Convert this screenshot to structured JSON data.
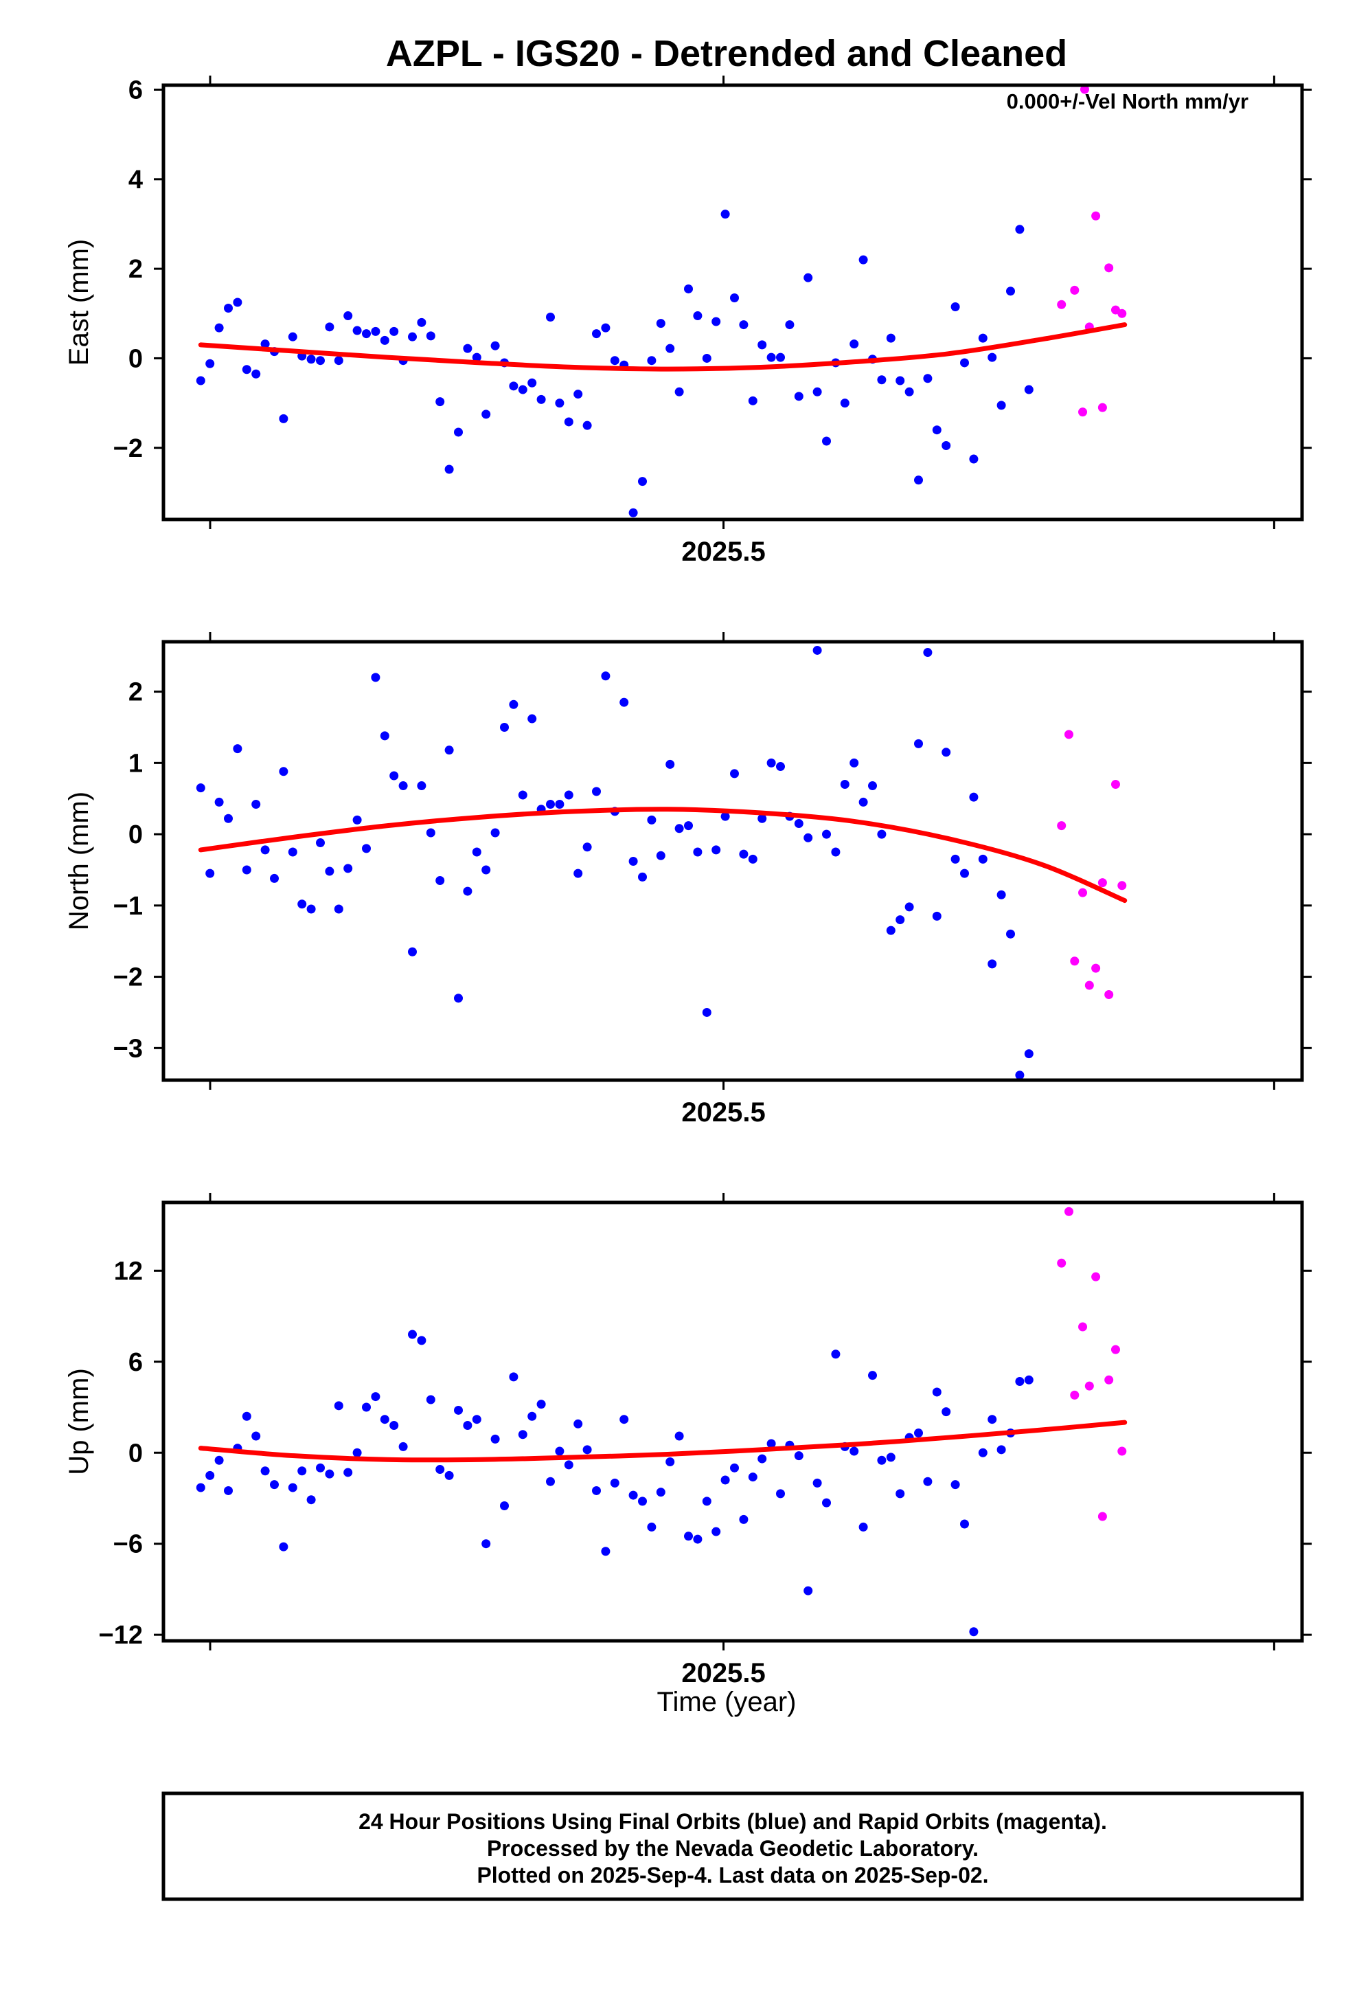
{
  "title": "AZPL - IGS20 - Detrended and Cleaned",
  "annotation": "0.000+/-Vel North mm/yr",
  "x_axis_label": "Time (year)",
  "footer": {
    "line1": "24 Hour Positions Using Final Orbits (blue) and Rapid Orbits (magenta).",
    "line2": "Processed by the Nevada Geodetic Laboratory.",
    "line3": "Plotted on 2025-Sep-4. Last data on 2025-Sep-02."
  },
  "colors": {
    "final": "#0000ff",
    "rapid": "#ff00ff",
    "fit": "#ff0000",
    "frame": "#000000"
  },
  "chart_data": [
    {
      "type": "scatter",
      "ylabel": "East (mm)",
      "xlim": [
        2025.3333,
        2025.6722
      ],
      "ylim": [
        -3.6,
        6.1
      ],
      "yticks": [
        -2,
        0,
        2,
        4,
        6
      ],
      "xticks": [
        2025.5
      ],
      "x_start": 2025.3444,
      "x_step": 0.002739,
      "final": [
        -0.5,
        -0.12,
        0.68,
        1.12,
        1.25,
        -0.25,
        -0.35,
        0.32,
        0.15,
        -1.35,
        0.48,
        0.05,
        -0.02,
        -0.05,
        0.7,
        -0.05,
        0.95,
        0.62,
        0.55,
        0.6,
        0.4,
        0.6,
        -0.05,
        0.48,
        0.8,
        0.5,
        -0.97,
        -2.48,
        -1.65,
        0.22,
        0.02,
        -1.25,
        0.28,
        -0.1,
        -0.62,
        -0.7,
        -0.55,
        -0.92,
        0.92,
        -1.0,
        -1.42,
        -0.8,
        -1.5,
        0.55,
        0.68,
        -0.05,
        -0.15,
        -3.45,
        -2.75,
        -0.05,
        0.78,
        0.22,
        -0.75,
        1.55,
        0.95,
        0.0,
        0.82,
        3.22,
        1.35,
        0.75,
        -0.95,
        0.3,
        0.02,
        0.02,
        0.75,
        -0.85,
        1.8,
        -0.75,
        -1.85,
        -0.1,
        -1.0,
        0.32,
        2.2,
        -0.02,
        -0.48,
        0.45,
        -0.5,
        -0.75,
        -2.72,
        -0.45,
        -1.6,
        -1.95,
        1.15,
        -0.1,
        -2.25,
        0.45,
        0.02,
        -1.05,
        1.5,
        2.88,
        -0.7
      ],
      "rapid": [
        1.2,
        1.52,
        -1.2,
        0.7,
        3.18,
        -1.1,
        2.02,
        1.08,
        1.0
      ],
      "rapid_x": [
        2025.6006,
        2025.6045,
        2025.6069,
        2025.6089,
        2025.6108,
        2025.6128,
        2025.6147,
        2025.6167,
        2025.6186
      ],
      "rapid_offscale_x": [
        2025.6075
      ],
      "fit_x": [
        2025.3444,
        2025.3722,
        2025.4,
        2025.4278,
        2025.4556,
        2025.4833,
        2025.5111,
        2025.5389,
        2025.5667,
        2025.5944,
        2025.6194
      ],
      "fit_y": [
        0.3,
        0.16,
        0.02,
        -0.1,
        -0.2,
        -0.24,
        -0.2,
        -0.08,
        0.1,
        0.42,
        0.75
      ]
    },
    {
      "type": "scatter",
      "ylabel": "North (mm)",
      "xlim": [
        2025.3333,
        2025.6722
      ],
      "ylim": [
        -3.45,
        2.7
      ],
      "yticks": [
        -3,
        -2,
        -1,
        0,
        1,
        2
      ],
      "xticks": [
        2025.5
      ],
      "x_start": 2025.3444,
      "x_step": 0.002739,
      "final": [
        0.65,
        -0.55,
        0.45,
        0.22,
        1.2,
        -0.5,
        0.42,
        -0.22,
        -0.62,
        0.88,
        -0.25,
        -0.98,
        -1.05,
        -0.12,
        -0.52,
        -1.05,
        -0.48,
        0.2,
        -0.2,
        2.2,
        1.38,
        0.82,
        0.68,
        -1.65,
        0.68,
        0.02,
        -0.65,
        1.18,
        -2.3,
        -0.8,
        -0.25,
        -0.5,
        0.02,
        1.5,
        1.82,
        0.55,
        1.62,
        0.35,
        0.42,
        0.42,
        0.55,
        -0.55,
        -0.18,
        0.6,
        2.22,
        0.32,
        1.85,
        -0.38,
        -0.6,
        0.2,
        -0.3,
        0.98,
        0.08,
        0.12,
        -0.25,
        -2.5,
        -0.22,
        0.25,
        0.85,
        -0.28,
        -0.35,
        0.22,
        1.0,
        0.95,
        0.25,
        0.15,
        -0.05,
        2.58,
        0.0,
        -0.25,
        0.7,
        1.0,
        0.45,
        0.68,
        0.0,
        -1.35,
        -1.2,
        -1.02,
        1.27,
        2.55,
        -1.15,
        1.15,
        -0.35,
        -0.55,
        0.52,
        -0.35,
        -1.82,
        -0.85,
        -1.4,
        -3.38,
        -3.08
      ],
      "rapid": [
        0.12,
        1.4,
        -1.78,
        -0.82,
        -2.12,
        -1.88,
        -0.68,
        -2.25,
        0.7,
        -0.72
      ],
      "rapid_x": [
        2025.6006,
        2025.6028,
        2025.6045,
        2025.6069,
        2025.6089,
        2025.6108,
        2025.6128,
        2025.6147,
        2025.6167,
        2025.6186
      ],
      "fit_x": [
        2025.3444,
        2025.3722,
        2025.4,
        2025.4278,
        2025.4556,
        2025.4833,
        2025.5111,
        2025.5389,
        2025.5667,
        2025.5944,
        2025.6194
      ],
      "fit_y": [
        -0.22,
        -0.04,
        0.12,
        0.24,
        0.32,
        0.35,
        0.3,
        0.18,
        -0.06,
        -0.42,
        -0.93
      ]
    },
    {
      "type": "scatter",
      "ylabel": "Up (mm)",
      "xlim": [
        2025.3333,
        2025.6722
      ],
      "ylim": [
        -12.4,
        16.5
      ],
      "yticks": [
        -12,
        -6,
        0,
        6,
        12
      ],
      "xticks": [
        2025.5
      ],
      "x_start": 2025.3444,
      "x_step": 0.002739,
      "final": [
        -2.3,
        -1.5,
        -0.5,
        -2.5,
        0.3,
        2.4,
        1.1,
        -1.2,
        -2.1,
        -6.2,
        -2.3,
        -1.2,
        -3.1,
        -1.0,
        -1.4,
        3.1,
        -1.3,
        0.0,
        3.0,
        3.7,
        2.2,
        1.8,
        0.4,
        7.8,
        7.4,
        3.5,
        -1.1,
        -1.5,
        2.8,
        1.8,
        2.2,
        -6.0,
        0.9,
        -3.5,
        5.0,
        1.2,
        2.4,
        3.2,
        -1.9,
        0.1,
        -0.8,
        1.9,
        0.2,
        -2.5,
        -6.5,
        -2.0,
        2.2,
        -2.8,
        -3.2,
        -4.9,
        -2.6,
        -0.6,
        1.1,
        -5.5,
        -5.7,
        -3.2,
        -5.2,
        -1.8,
        -1.0,
        -4.4,
        -1.6,
        -0.4,
        0.6,
        -2.7,
        0.5,
        -0.2,
        -9.1,
        -2.0,
        -3.3,
        6.5,
        0.4,
        0.1,
        -4.9,
        5.1,
        -0.5,
        -0.3,
        -2.7,
        1.0,
        1.3,
        -1.9,
        4.0,
        2.7,
        -2.1,
        -4.7,
        -11.8,
        0.0,
        2.2,
        0.2,
        1.3,
        4.7,
        4.8
      ],
      "rapid": [
        12.5,
        15.9,
        3.8,
        8.3,
        4.4,
        11.6,
        -4.2,
        4.8,
        6.8,
        0.1
      ],
      "rapid_x": [
        2025.6006,
        2025.6028,
        2025.6045,
        2025.6069,
        2025.6089,
        2025.6108,
        2025.6128,
        2025.6147,
        2025.6167,
        2025.6186
      ],
      "fit_x": [
        2025.3444,
        2025.3722,
        2025.4,
        2025.4278,
        2025.4556,
        2025.4833,
        2025.5111,
        2025.5389,
        2025.5667,
        2025.5944,
        2025.6194
      ],
      "fit_y": [
        0.3,
        -0.2,
        -0.45,
        -0.45,
        -0.3,
        -0.1,
        0.2,
        0.55,
        1.0,
        1.5,
        2.0
      ]
    }
  ]
}
